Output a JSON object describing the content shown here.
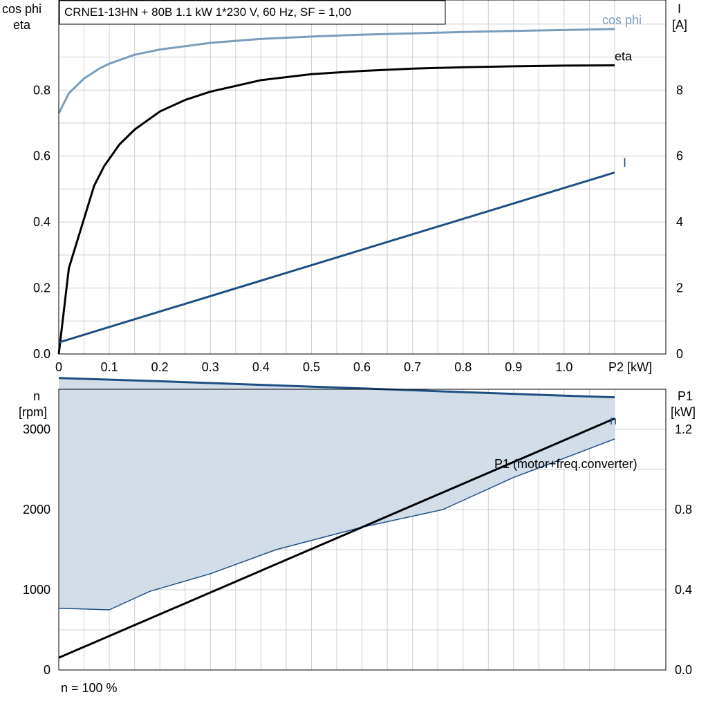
{
  "chart_data": [
    {
      "type": "line",
      "title": "CRNE1-13HN + 80B   1.1 kW   1*230 V, 60 Hz, SF = 1,00",
      "xlabel": "P2 [kW]",
      "ylabel_left": [
        "cos phi",
        "eta"
      ],
      "ylabel_right": [
        "I",
        "[A]"
      ],
      "x_ticks": [
        "0",
        "0.1",
        "0.2",
        "0.3",
        "0.4",
        "0.5",
        "0.6",
        "0.7",
        "0.8",
        "0.9",
        "1.0"
      ],
      "y_left_ticks": [
        "0.0",
        "0.2",
        "0.4",
        "0.6",
        "0.8"
      ],
      "y_right_ticks": [
        "0",
        "2",
        "4",
        "6",
        "8"
      ],
      "xlim": [
        0,
        1.1
      ],
      "ylim_left": [
        0,
        1.0
      ],
      "ylim_right": [
        0,
        10
      ],
      "grid": true,
      "series": [
        {
          "name": "cos phi",
          "axis": "left",
          "color": "#7a9dbd",
          "x": [
            0,
            0.02,
            0.05,
            0.08,
            0.1,
            0.15,
            0.2,
            0.3,
            0.4,
            0.5,
            0.6,
            0.7,
            0.8,
            0.9,
            1.0,
            1.1
          ],
          "y": [
            0.73,
            0.79,
            0.835,
            0.865,
            0.88,
            0.907,
            0.923,
            0.943,
            0.955,
            0.962,
            0.968,
            0.972,
            0.976,
            0.979,
            0.982,
            0.985
          ]
        },
        {
          "name": "eta",
          "axis": "left",
          "color": "#000000",
          "x": [
            0,
            0.02,
            0.05,
            0.07,
            0.09,
            0.12,
            0.15,
            0.2,
            0.25,
            0.3,
            0.4,
            0.5,
            0.6,
            0.7,
            0.8,
            0.9,
            1.0,
            1.1
          ],
          "y": [
            0,
            0.26,
            0.41,
            0.51,
            0.57,
            0.635,
            0.68,
            0.735,
            0.77,
            0.795,
            0.83,
            0.848,
            0.858,
            0.865,
            0.869,
            0.872,
            0.874,
            0.875
          ]
        },
        {
          "name": "I",
          "axis": "right",
          "color": "#1e4f84",
          "x": [
            0,
            1.1
          ],
          "y": [
            0.35,
            5.5
          ]
        }
      ]
    },
    {
      "type": "area",
      "xlabel": "",
      "ylabel_left": [
        "n",
        "[rpm]"
      ],
      "ylabel_right": [
        "P1",
        "[kW]"
      ],
      "y_left_ticks": [
        "0",
        "1000",
        "2000",
        "3000"
      ],
      "y_right_ticks": [
        "0.0",
        "0.4",
        "0.8",
        "1.2"
      ],
      "xlim": [
        0,
        1.1
      ],
      "ylim_left": [
        0,
        3500
      ],
      "ylim_right": [
        0,
        1.4
      ],
      "grid": true,
      "footnote": "n = 100 %",
      "fill_color": "#d3dde8",
      "series": [
        {
          "name": "n",
          "axis": "left",
          "color": "#1e4f84",
          "x": [
            0,
            0.2,
            0.4,
            0.6,
            0.8,
            1.0,
            1.1
          ],
          "y": [
            3640,
            3600,
            3555,
            3510,
            3465,
            3420,
            3400
          ]
        },
        {
          "axis": "left",
          "color": "#1e4f84",
          "role": "lower boundary",
          "x": [
            0,
            0.1,
            0.18,
            0.3,
            0.43,
            0.6,
            0.76,
            0.9,
            1.1
          ],
          "y": [
            770,
            750,
            980,
            1200,
            1500,
            1780,
            2000,
            2400,
            2880
          ]
        },
        {
          "name": "P1 (motor+freq.converter)",
          "axis": "right",
          "color": "#000000",
          "x": [
            0,
            1.1
          ],
          "y": [
            0.061,
            1.254
          ]
        }
      ]
    }
  ]
}
